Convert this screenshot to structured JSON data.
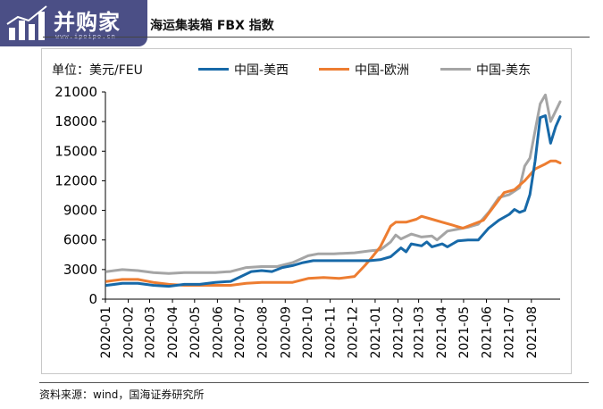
{
  "header": {
    "logo_text": "并购家",
    "logo_sub": "www.ipoipo.cn",
    "title": "海运集装箱 FBX 指数"
  },
  "footer": {
    "source": "资料来源：wind，国海证券研究所"
  },
  "colors": {
    "frame_border": "#c8c8c8",
    "axis": "#000000",
    "logo_bg": "#4b4f86"
  },
  "chart_data": {
    "type": "line",
    "title": "海运集装箱 FBX 指数",
    "unit_label": "单位：美元/FEU",
    "xlabel": "",
    "ylabel": "",
    "ylim": [
      0,
      21000
    ],
    "yticks": [
      0,
      3000,
      6000,
      9000,
      12000,
      15000,
      18000,
      21000
    ],
    "ytick_labels": [
      "0",
      "3000",
      "6000",
      "9000",
      "12000",
      "15000",
      "18000",
      "21000"
    ],
    "xlim": [
      "2020-01-01",
      "2021-09-09"
    ],
    "xticks": [
      "2020-01",
      "2020-02",
      "2020-03",
      "2020-04",
      "2020-05",
      "2020-06",
      "2020-07",
      "2020-08",
      "2020-09",
      "2020-10",
      "2020-11",
      "2020-12",
      "2021-01",
      "2021-02",
      "2021-03",
      "2021-04",
      "2021-05",
      "2021-06",
      "2021-07",
      "2021-08"
    ],
    "grid": false,
    "legend_position": "top",
    "series": [
      {
        "name": "中国-美西",
        "color": "#1769a8",
        "points": [
          [
            "2020-01-03",
            1400
          ],
          [
            "2020-01-24",
            1600
          ],
          [
            "2020-02-14",
            1600
          ],
          [
            "2020-03-06",
            1400
          ],
          [
            "2020-03-27",
            1300
          ],
          [
            "2020-04-17",
            1500
          ],
          [
            "2020-05-08",
            1500
          ],
          [
            "2020-05-29",
            1700
          ],
          [
            "2020-06-19",
            1800
          ],
          [
            "2020-07-03",
            2300
          ],
          [
            "2020-07-17",
            2800
          ],
          [
            "2020-07-31",
            2900
          ],
          [
            "2020-08-14",
            2800
          ],
          [
            "2020-08-28",
            3200
          ],
          [
            "2020-09-11",
            3400
          ],
          [
            "2020-09-25",
            3700
          ],
          [
            "2020-10-09",
            3900
          ],
          [
            "2020-11-06",
            3900
          ],
          [
            "2020-12-04",
            3900
          ],
          [
            "2020-12-25",
            3900
          ],
          [
            "2021-01-08",
            4000
          ],
          [
            "2021-01-22",
            4300
          ],
          [
            "2021-02-05",
            5200
          ],
          [
            "2021-02-12",
            4800
          ],
          [
            "2021-02-19",
            5600
          ],
          [
            "2021-03-05",
            5400
          ],
          [
            "2021-03-12",
            5800
          ],
          [
            "2021-03-19",
            5300
          ],
          [
            "2021-04-02",
            5600
          ],
          [
            "2021-04-09",
            5300
          ],
          [
            "2021-04-23",
            5900
          ],
          [
            "2021-05-07",
            6000
          ],
          [
            "2021-05-21",
            6000
          ],
          [
            "2021-06-04",
            7200
          ],
          [
            "2021-06-18",
            8000
          ],
          [
            "2021-07-02",
            8600
          ],
          [
            "2021-07-09",
            9100
          ],
          [
            "2021-07-16",
            8800
          ],
          [
            "2021-07-23",
            9000
          ],
          [
            "2021-07-30",
            10600
          ],
          [
            "2021-08-06",
            14000
          ],
          [
            "2021-08-13",
            18400
          ],
          [
            "2021-08-20",
            18600
          ],
          [
            "2021-08-27",
            15800
          ],
          [
            "2021-09-03",
            17500
          ],
          [
            "2021-09-09",
            18500
          ]
        ]
      },
      {
        "name": "中国-欧洲",
        "color": "#ed7d31",
        "points": [
          [
            "2020-01-03",
            1800
          ],
          [
            "2020-01-24",
            2000
          ],
          [
            "2020-02-14",
            2000
          ],
          [
            "2020-03-06",
            1700
          ],
          [
            "2020-03-27",
            1500
          ],
          [
            "2020-04-17",
            1400
          ],
          [
            "2020-05-08",
            1400
          ],
          [
            "2020-05-29",
            1400
          ],
          [
            "2020-06-19",
            1400
          ],
          [
            "2020-07-10",
            1600
          ],
          [
            "2020-07-31",
            1700
          ],
          [
            "2020-08-21",
            1700
          ],
          [
            "2020-09-11",
            1700
          ],
          [
            "2020-10-02",
            2100
          ],
          [
            "2020-10-23",
            2200
          ],
          [
            "2020-11-13",
            2100
          ],
          [
            "2020-12-04",
            2300
          ],
          [
            "2020-12-18",
            3400
          ],
          [
            "2020-12-25",
            4000
          ],
          [
            "2021-01-08",
            5300
          ],
          [
            "2021-01-22",
            7400
          ],
          [
            "2021-01-29",
            7800
          ],
          [
            "2021-02-12",
            7800
          ],
          [
            "2021-02-26",
            8100
          ],
          [
            "2021-03-05",
            8400
          ],
          [
            "2021-03-19",
            8100
          ],
          [
            "2021-04-02",
            7800
          ],
          [
            "2021-04-16",
            7500
          ],
          [
            "2021-04-30",
            7200
          ],
          [
            "2021-05-14",
            7600
          ],
          [
            "2021-05-28",
            8000
          ],
          [
            "2021-06-11",
            9400
          ],
          [
            "2021-06-25",
            10800
          ],
          [
            "2021-07-09",
            11100
          ],
          [
            "2021-07-23",
            12000
          ],
          [
            "2021-08-06",
            13200
          ],
          [
            "2021-08-20",
            13700
          ],
          [
            "2021-08-27",
            14000
          ],
          [
            "2021-09-03",
            14000
          ],
          [
            "2021-09-09",
            13800
          ]
        ]
      },
      {
        "name": "中国-美东",
        "color": "#a5a5a5",
        "points": [
          [
            "2020-01-03",
            2800
          ],
          [
            "2020-01-24",
            3000
          ],
          [
            "2020-02-14",
            2900
          ],
          [
            "2020-03-06",
            2700
          ],
          [
            "2020-03-27",
            2600
          ],
          [
            "2020-04-17",
            2700
          ],
          [
            "2020-05-08",
            2700
          ],
          [
            "2020-05-29",
            2700
          ],
          [
            "2020-06-19",
            2800
          ],
          [
            "2020-07-10",
            3200
          ],
          [
            "2020-07-31",
            3300
          ],
          [
            "2020-08-21",
            3300
          ],
          [
            "2020-09-11",
            3700
          ],
          [
            "2020-10-02",
            4400
          ],
          [
            "2020-10-16",
            4600
          ],
          [
            "2020-11-06",
            4600
          ],
          [
            "2020-12-04",
            4700
          ],
          [
            "2020-12-25",
            4900
          ],
          [
            "2021-01-08",
            5000
          ],
          [
            "2021-01-22",
            5800
          ],
          [
            "2021-01-29",
            6500
          ],
          [
            "2021-02-05",
            6100
          ],
          [
            "2021-02-19",
            6600
          ],
          [
            "2021-03-05",
            6300
          ],
          [
            "2021-03-19",
            6400
          ],
          [
            "2021-03-26",
            6000
          ],
          [
            "2021-04-09",
            6900
          ],
          [
            "2021-04-23",
            7100
          ],
          [
            "2021-05-07",
            7300
          ],
          [
            "2021-05-21",
            7600
          ],
          [
            "2021-06-04",
            8800
          ],
          [
            "2021-06-18",
            10300
          ],
          [
            "2021-07-02",
            10600
          ],
          [
            "2021-07-16",
            11300
          ],
          [
            "2021-07-23",
            13500
          ],
          [
            "2021-07-30",
            14300
          ],
          [
            "2021-08-13",
            19800
          ],
          [
            "2021-08-20",
            20700
          ],
          [
            "2021-08-27",
            18000
          ],
          [
            "2021-09-09",
            20000
          ]
        ]
      }
    ]
  }
}
